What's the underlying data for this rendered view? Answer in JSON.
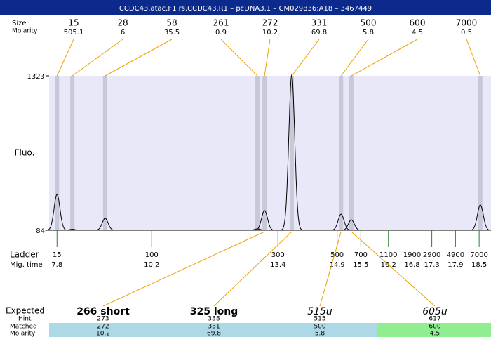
{
  "title": "CCDC43.atac.F1  rs.CCDC43.R1 – pcDNA3.1 – CM029836:A18 – 3467449",
  "peak_table": {
    "row_labels": [
      "Size",
      "Molarity"
    ],
    "peaks": [
      {
        "size": 15,
        "molarity": 505.1,
        "time": 7.8,
        "height": 371
      },
      {
        "size": 28,
        "molarity": 6,
        "time": 8.19,
        "height": 92
      },
      {
        "size": 58,
        "molarity": 35.5,
        "time": 9.02,
        "height": 180
      },
      {
        "size": 261,
        "molarity": 0.9,
        "time": 12.88,
        "height": 95
      },
      {
        "size": 272,
        "molarity": 10.2,
        "time": 13.06,
        "height": 242
      },
      {
        "size": 331,
        "molarity": 69.8,
        "time": 13.75,
        "height": 1330
      },
      {
        "size": 500,
        "molarity": 5.8,
        "time": 15.0,
        "height": 213
      },
      {
        "size": 600,
        "molarity": 4.5,
        "time": 15.26,
        "height": 168
      },
      {
        "size": 7000,
        "molarity": 0.5,
        "time": 18.53,
        "height": 287
      }
    ]
  },
  "axis": {
    "label": "Fluo.",
    "ylim": [
      84,
      1323
    ],
    "yticks": [
      84,
      1323
    ],
    "xlim": [
      7.6,
      18.8
    ]
  },
  "ladder": {
    "row_labels": [
      "Ladder",
      "Mig. time"
    ],
    "sizes": [
      15,
      100,
      300,
      500,
      700,
      1100,
      1900,
      2900,
      4900,
      7000
    ],
    "times": [
      7.8,
      10.2,
      13.4,
      14.9,
      15.5,
      16.2,
      16.8,
      17.3,
      17.9,
      18.5
    ]
  },
  "expected": {
    "row_labels": [
      "Expected",
      "Hint",
      "Matched",
      "Molarity"
    ],
    "items": [
      {
        "label": "266 short",
        "style": "bold",
        "hint": 273,
        "matched": 272,
        "molarity": 10.2,
        "color": "#add8e6"
      },
      {
        "label": "325 long",
        "style": "bold",
        "hint": 338,
        "matched": 331,
        "molarity": 69.8,
        "color": "#add8e6"
      },
      {
        "label": "515u",
        "style": "italic",
        "hint": 515,
        "matched": 500,
        "molarity": 5.8,
        "color": "#add8e6"
      },
      {
        "label": "605u",
        "style": "italic",
        "hint": 617,
        "matched": 600,
        "molarity": 4.5,
        "color": "#90ee90"
      }
    ]
  }
}
